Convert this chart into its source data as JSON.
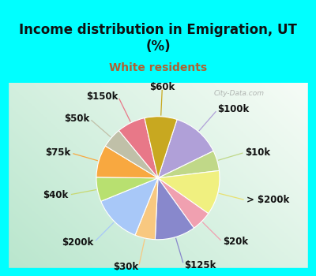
{
  "title": "Income distribution in Emigration, UT\n(%)",
  "subtitle": "White residents",
  "title_color": "#101010",
  "subtitle_color": "#b06030",
  "bg_cyan": "#00ffff",
  "labels": [
    "$100k",
    "$10k",
    "> $200k",
    "$20k",
    "$125k",
    "$30k",
    "$200k",
    "$40k",
    "$75k",
    "$50k",
    "$150k",
    "$60k"
  ],
  "values": [
    12,
    5,
    11,
    5,
    10,
    5,
    12,
    6,
    8,
    5,
    7,
    8
  ],
  "colors": [
    "#b0a0d8",
    "#c0d888",
    "#f0f080",
    "#f0a0b0",
    "#8888cc",
    "#f8c880",
    "#a8c8f8",
    "#b8e070",
    "#f8a840",
    "#c0c0a8",
    "#e87888",
    "#c8a820"
  ],
  "line_colors": [
    "#b0a0d8",
    "#c0d888",
    "#e8e070",
    "#f0a0b0",
    "#8888cc",
    "#f8c880",
    "#a8c8f8",
    "#c8d870",
    "#f8a840",
    "#c0c0a8",
    "#e87888",
    "#c8a820"
  ],
  "watermark": "City-Data.com",
  "start_angle": 72,
  "label_fontsize": 8.5
}
